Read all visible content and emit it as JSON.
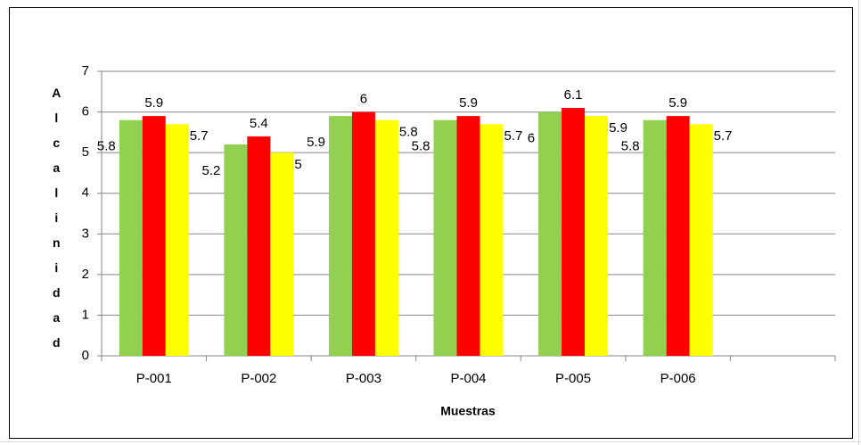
{
  "chart_data": {
    "type": "bar",
    "x_label": "Muestras",
    "y_label": "Alcalinidad",
    "categories": [
      "P-001",
      "P-002",
      "P-003",
      "P-004",
      "P-005",
      "P-006",
      null
    ],
    "series": [
      {
        "color": "#92d050",
        "values": [
          5.8,
          5.2,
          5.9,
          5.8,
          6,
          5.8,
          null
        ]
      },
      {
        "color": "#ff0000",
        "values": [
          5.9,
          5.4,
          6,
          5.9,
          6.1,
          5.9,
          null
        ]
      },
      {
        "color": "#ffff00",
        "values": [
          5.7,
          5,
          5.8,
          5.7,
          5.9,
          5.7,
          null
        ]
      }
    ],
    "ylim": [
      0,
      7
    ],
    "yticks": [
      0,
      1,
      2,
      3,
      4,
      5,
      6,
      7
    ],
    "grid": true,
    "data_labels": true
  }
}
